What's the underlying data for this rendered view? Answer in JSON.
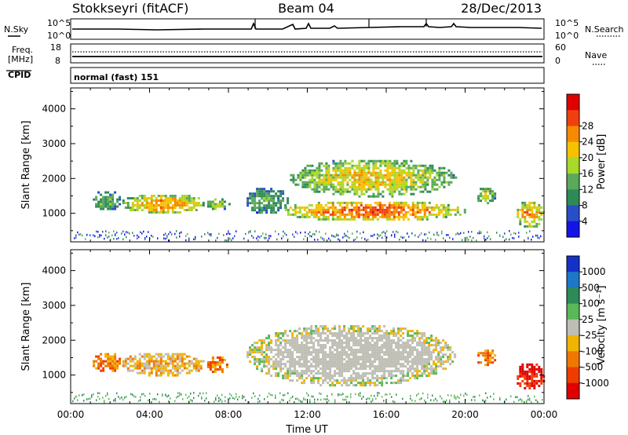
{
  "header": {
    "station": "Stokkseyri (fitACF)",
    "beam": "Beam 04",
    "date": "28/Dec/2013"
  },
  "top_panels": {
    "nsky_label": "N.Sky",
    "nsearch_label": "N.Search",
    "noise_ticks_left": [
      "10^5",
      "10^0"
    ],
    "noise_ticks_right": [
      "10^5",
      "10^0"
    ],
    "freq_label": "Freq.",
    "freq_unit": "[MHz]",
    "freq_ticks": [
      "18",
      "8"
    ],
    "nave_label": "Nave",
    "nave_ticks": [
      "60",
      "0"
    ],
    "cpid_label": "CPID",
    "cpid_value": "normal (fast) 151"
  },
  "chart_data": [
    {
      "type": "heatmap",
      "name": "power",
      "ylabel": "Slant Range [km]",
      "ylim": [
        180,
        4600
      ],
      "yticks": [
        1000,
        2000,
        3000,
        4000
      ],
      "xlim": [
        0,
        24
      ],
      "xticks": [
        "00:00",
        "04:00",
        "08:00",
        "12:00",
        "16:00",
        "20:00",
        "00:00"
      ],
      "colorbar": {
        "label": "Power [dB]",
        "ticks": [
          "4",
          "8",
          "12",
          "16",
          "20",
          "24",
          "28"
        ],
        "colors": [
          "#1414e6",
          "#2a4dc8",
          "#2e8b57",
          "#5aa85a",
          "#a8d82a",
          "#f5c200",
          "#f58a00",
          "#f04010",
          "#e00000"
        ]
      },
      "echo_regions": [
        {
          "t": [
            1.0,
            2.5
          ],
          "r": [
            1100,
            1700
          ],
          "level": 3
        },
        {
          "t": [
            2.5,
            6.8
          ],
          "r": [
            1000,
            1600
          ],
          "level": 6
        },
        {
          "t": [
            6.8,
            8.0
          ],
          "r": [
            1100,
            1500
          ],
          "level": 4
        },
        {
          "t": [
            8.8,
            11.0
          ],
          "r": [
            1000,
            1800
          ],
          "level": 3
        },
        {
          "t": [
            10.5,
            20.0
          ],
          "r": [
            800,
            1400
          ],
          "level": 7
        },
        {
          "t": [
            11.0,
            19.5
          ],
          "r": [
            1500,
            2600
          ],
          "level": 5
        },
        {
          "t": [
            20.5,
            21.5
          ],
          "r": [
            1300,
            1800
          ],
          "level": 4
        },
        {
          "t": [
            22.5,
            24.0
          ],
          "r": [
            600,
            1400
          ],
          "level": 6
        }
      ]
    },
    {
      "type": "heatmap",
      "name": "velocity",
      "ylabel": "Slant Range [km]",
      "ylim": [
        180,
        4600
      ],
      "yticks": [
        1000,
        2000,
        3000,
        4000
      ],
      "xlabel": "Time UT",
      "xlim": [
        0,
        24
      ],
      "xticks": [
        "00:00",
        "04:00",
        "08:00",
        "12:00",
        "16:00",
        "20:00",
        "00:00"
      ],
      "colorbar": {
        "label": "Velocity [m s⁻¹]",
        "ticks": [
          "1000",
          "500",
          "100",
          "25",
          "-25",
          "-100",
          "-500",
          "-1000"
        ],
        "colors": [
          "#1432c8",
          "#1e78c8",
          "#2e8b57",
          "#5ab85a",
          "#bebeb4",
          "#f0b400",
          "#f07800",
          "#f03c00",
          "#e00000"
        ]
      },
      "echo_regions": [
        {
          "t": [
            1.0,
            2.5
          ],
          "r": [
            1100,
            1700
          ],
          "level": 6
        },
        {
          "t": [
            2.5,
            6.8
          ],
          "r": [
            1000,
            1700
          ],
          "level": 5
        },
        {
          "t": [
            6.8,
            8.0
          ],
          "r": [
            1100,
            1600
          ],
          "level": 6
        },
        {
          "t": [
            8.8,
            19.5
          ],
          "r": [
            700,
            2500
          ],
          "level": 4
        },
        {
          "t": [
            20.5,
            21.5
          ],
          "r": [
            1300,
            1800
          ],
          "level": 6
        },
        {
          "t": [
            22.5,
            24.0
          ],
          "r": [
            600,
            1400
          ],
          "level": 8
        }
      ]
    }
  ]
}
